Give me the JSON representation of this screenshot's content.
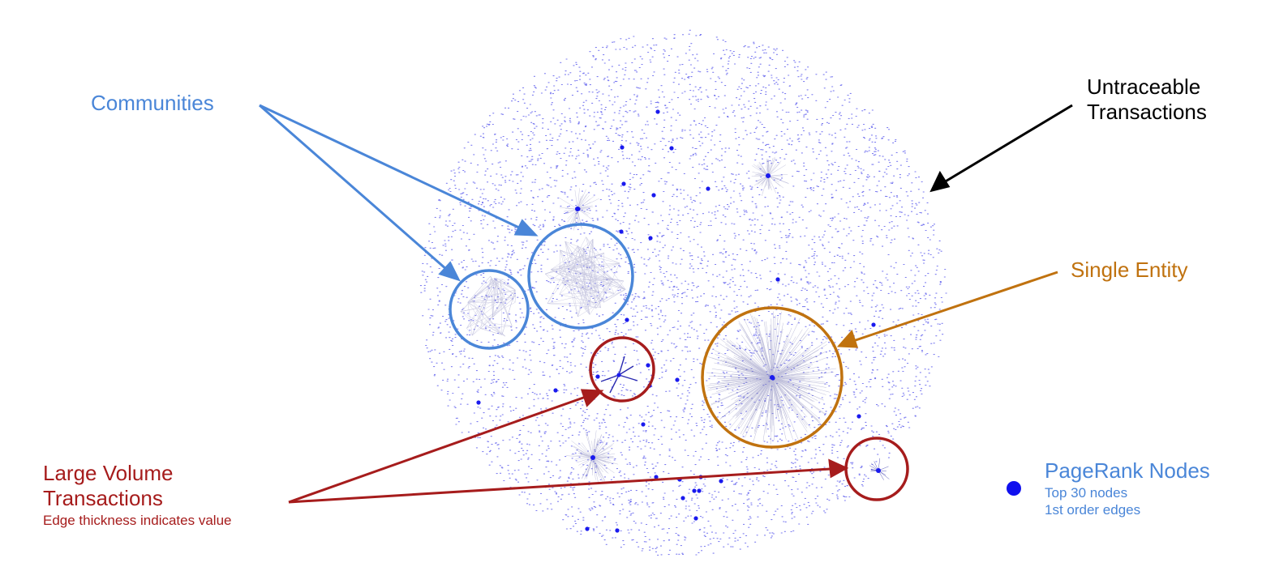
{
  "colors": {
    "communities": "#4a86d8",
    "untraceable": "#000000",
    "single_entity": "#c0720f",
    "large_volume": "#a61c1c",
    "pagerank": "#4a86d8",
    "nodes": "#1a1aee"
  },
  "labels": {
    "communities": "Communities",
    "untraceable_line1": "Untraceable",
    "untraceable_line2": "Transactions",
    "single_entity": "Single Entity",
    "large_volume_line1": "Large Volume",
    "large_volume_line2": "Transactions",
    "large_volume_sub": "Edge thickness indicates value"
  },
  "legend": {
    "title": "PageRank Nodes",
    "line1": "Top 30 nodes",
    "line2": "1st order edges"
  }
}
